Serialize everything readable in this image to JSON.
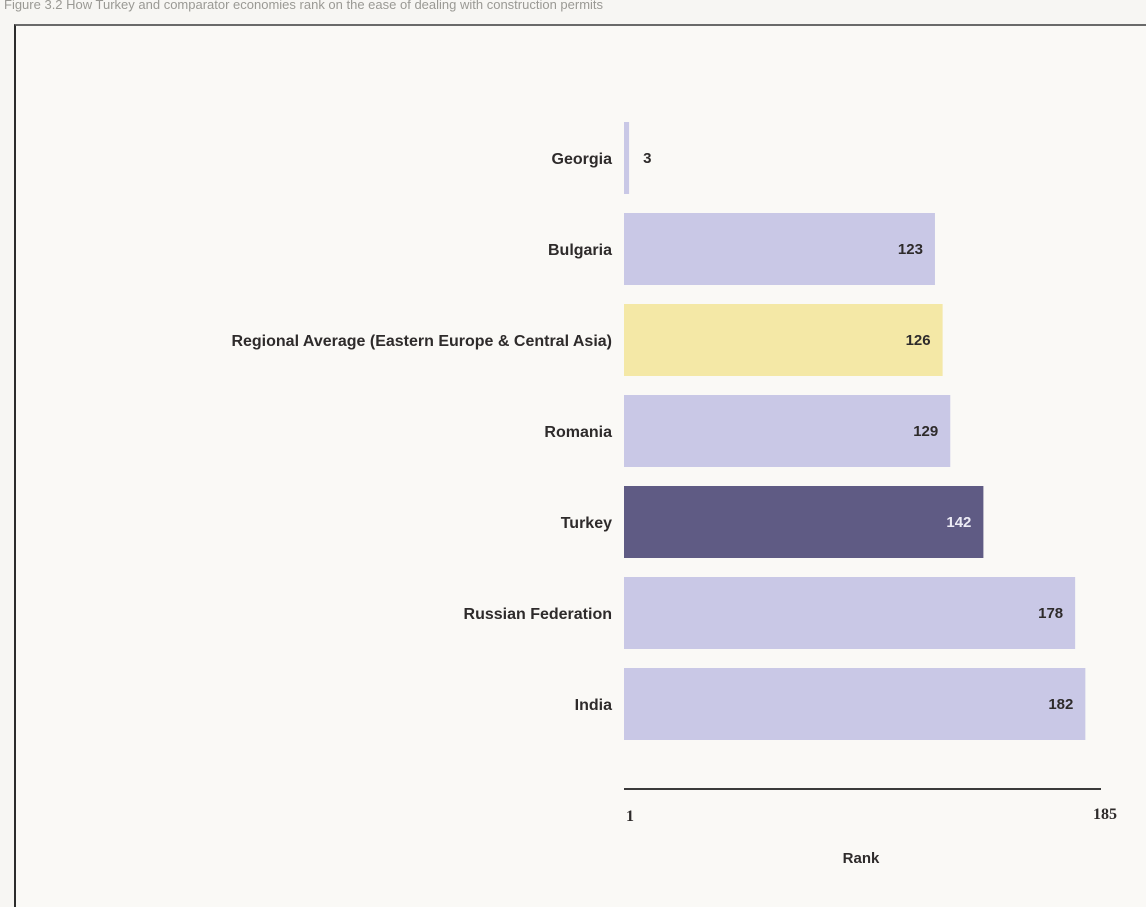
{
  "caption": "Figure 3.2 How Turkey and comparator economies rank on the ease of dealing with construction permits",
  "chart_data": {
    "type": "bar",
    "orientation": "horizontal",
    "title": "",
    "xlabel": "Rank",
    "ylabel": "",
    "xlim": [
      1,
      185
    ],
    "x_tick_labels": [
      "1",
      "185"
    ],
    "grid": false,
    "legend": "none",
    "categories": [
      "Georgia",
      "Bulgaria",
      "Regional Average (Eastern Europe & Central Asia)",
      "Romania",
      "Turkey",
      "Russian Federation",
      "India"
    ],
    "values": [
      3,
      123,
      126,
      129,
      142,
      178,
      182
    ],
    "colors": {
      "default_bar": "#c9c8e6",
      "regional_average_bar": "#f4e8a6",
      "highlight_bar": "#5f5b84",
      "axis_line": "#3a3a3a",
      "label_text": "#2e2b2b",
      "highlight_value_text": "#ecebf5"
    }
  }
}
